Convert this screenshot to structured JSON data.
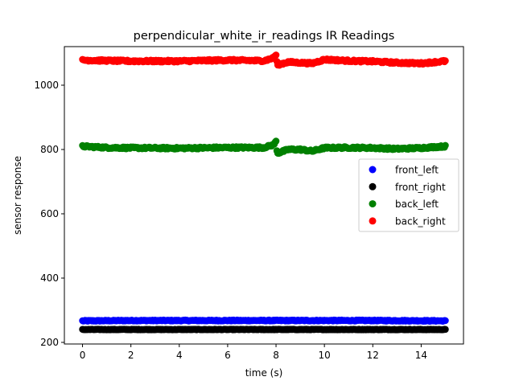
{
  "chart_data": {
    "type": "scatter",
    "title": "perpendicular_white_ir_readings IR Readings",
    "xlabel": "time (s)",
    "ylabel": "sensor response",
    "xlim": [
      -0.75,
      15.75
    ],
    "ylim": [
      195,
      1120
    ],
    "xticks": [
      0,
      2,
      4,
      6,
      8,
      10,
      12,
      14
    ],
    "yticks": [
      200,
      400,
      600,
      800,
      1000
    ],
    "grid": false,
    "legend_position": "center-right",
    "x_start": 0,
    "x_end": 15,
    "series": [
      {
        "name": "front_left",
        "color": "#0000ff",
        "baseline": 268,
        "noise": 1.5,
        "segments": [
          [
            0,
            267
          ],
          [
            2,
            268
          ],
          [
            4,
            268
          ],
          [
            6,
            268
          ],
          [
            8,
            268
          ],
          [
            10,
            268
          ],
          [
            12,
            268
          ],
          [
            15,
            267
          ]
        ]
      },
      {
        "name": "front_right",
        "color": "#000000",
        "baseline": 240,
        "noise": 0.8,
        "segments": [
          [
            0,
            240
          ],
          [
            15,
            240
          ]
        ]
      },
      {
        "name": "back_left",
        "color": "#008000",
        "baseline": 805,
        "noise": 3,
        "segments": [
          [
            0,
            810
          ],
          [
            1,
            806
          ],
          [
            2,
            805
          ],
          [
            4,
            804
          ],
          [
            6,
            806
          ],
          [
            7.5,
            806
          ],
          [
            7.9,
            815
          ],
          [
            8.0,
            825
          ],
          [
            8.05,
            788
          ],
          [
            8.5,
            800
          ],
          [
            9,
            800
          ],
          [
            9.5,
            795
          ],
          [
            10,
            805
          ],
          [
            11,
            806
          ],
          [
            12,
            805
          ],
          [
            13,
            802
          ],
          [
            14,
            805
          ],
          [
            15,
            810
          ]
        ]
      },
      {
        "name": "back_right",
        "color": "#ff0000",
        "baseline": 1075,
        "noise": 3,
        "segments": [
          [
            0,
            1078
          ],
          [
            2,
            1075
          ],
          [
            4,
            1075
          ],
          [
            6,
            1078
          ],
          [
            7.5,
            1076
          ],
          [
            7.9,
            1085
          ],
          [
            8.0,
            1095
          ],
          [
            8.05,
            1063
          ],
          [
            8.5,
            1072
          ],
          [
            9.5,
            1068
          ],
          [
            10,
            1080
          ],
          [
            11,
            1076
          ],
          [
            12,
            1074
          ],
          [
            13,
            1070
          ],
          [
            14,
            1068
          ],
          [
            15,
            1075
          ]
        ]
      }
    ]
  }
}
